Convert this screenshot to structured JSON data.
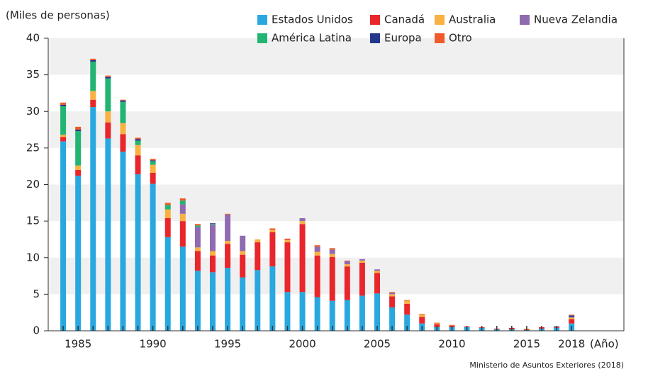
{
  "chart_data": {
    "type": "stacked_bar",
    "y_label": "(Miles de personas)",
    "x_label": "(Año)",
    "source": "Ministerio de Asuntos Exteriores (2018)",
    "x": [
      1984,
      1985,
      1986,
      1987,
      1988,
      1989,
      1990,
      1991,
      1992,
      1993,
      1994,
      1995,
      1996,
      1997,
      1998,
      1999,
      2000,
      2001,
      2002,
      2003,
      2004,
      2005,
      2006,
      2007,
      2008,
      2009,
      2010,
      2011,
      2012,
      2013,
      2014,
      2015,
      2016,
      2017,
      2018
    ],
    "xlim": [
      1983,
      2021.5
    ],
    "xticks": [
      1985,
      1990,
      1995,
      2000,
      2005,
      2010,
      2015,
      2018
    ],
    "ylim": [
      0,
      40
    ],
    "yticks": [
      0,
      5,
      10,
      15,
      20,
      25,
      30,
      35,
      40
    ],
    "grid": true,
    "series": [
      {
        "name": "Estados Unidos",
        "color": "#29a8e0",
        "values": [
          25.9,
          21.2,
          30.6,
          26.3,
          24.5,
          21.4,
          20.1,
          12.8,
          11.5,
          8.2,
          8.0,
          8.6,
          7.3,
          8.3,
          8.8,
          5.3,
          5.3,
          4.6,
          4.1,
          4.2,
          4.8,
          5.1,
          3.2,
          2.2,
          1.0,
          0.5,
          0.5,
          0.5,
          0.4,
          0.2,
          0.2,
          0.1,
          0.3,
          0.4,
          1.0
        ]
      },
      {
        "name": "Canadá",
        "color": "#e8262b",
        "values": [
          0.6,
          0.8,
          1.0,
          2.2,
          2.4,
          2.6,
          1.5,
          2.6,
          3.5,
          2.7,
          2.3,
          3.3,
          3.1,
          3.8,
          4.7,
          6.8,
          9.3,
          5.7,
          6.0,
          4.6,
          4.5,
          2.8,
          1.5,
          1.5,
          0.9,
          0.4,
          0.2,
          0.1,
          0.1,
          0.1,
          0.2,
          0.1,
          0.2,
          0.1,
          0.6
        ]
      },
      {
        "name": "Australia",
        "color": "#f9b142",
        "values": [
          0.3,
          0.6,
          1.2,
          1.5,
          1.5,
          1.4,
          1.1,
          1.2,
          1.0,
          0.5,
          0.6,
          0.4,
          0.5,
          0.4,
          0.3,
          0.3,
          0.4,
          0.5,
          0.4,
          0.3,
          0.3,
          0.3,
          0.3,
          0.4,
          0.3,
          0.1,
          0,
          0,
          0,
          0,
          0,
          0.1,
          0,
          0,
          0.2
        ]
      },
      {
        "name": "Nueva Zelandia",
        "color": "#8f6bb0",
        "values": [
          0,
          0,
          0,
          0,
          0,
          0,
          0,
          0,
          1.3,
          2.8,
          3.6,
          3.6,
          2.1,
          0,
          0,
          0,
          0.4,
          0.7,
          0.6,
          0.4,
          0.2,
          0.2,
          0.2,
          0,
          0,
          0,
          0,
          0,
          0,
          0,
          0,
          0,
          0,
          0,
          0.1
        ]
      },
      {
        "name": "América Latina",
        "color": "#22b473",
        "values": [
          3.9,
          4.7,
          4.0,
          4.5,
          2.9,
          0.6,
          0.5,
          0.6,
          0.5,
          0.2,
          0.1,
          0,
          0,
          0,
          0,
          0,
          0,
          0,
          0,
          0,
          0,
          0,
          0,
          0,
          0,
          0,
          0,
          0,
          0,
          0,
          0,
          0,
          0,
          0,
          0
        ]
      },
      {
        "name": "Europa",
        "color": "#23388c",
        "values": [
          0.2,
          0.2,
          0.2,
          0.2,
          0.2,
          0.2,
          0.1,
          0,
          0,
          0,
          0.1,
          0,
          0,
          0,
          0,
          0,
          0,
          0,
          0,
          0,
          0,
          0,
          0,
          0,
          0,
          0,
          0,
          0,
          0,
          0,
          0,
          0,
          0,
          0.1,
          0.2
        ]
      },
      {
        "name": "Otro",
        "color": "#ef5a28",
        "values": [
          0.3,
          0.4,
          0.2,
          0.2,
          0.1,
          0.2,
          0.2,
          0.3,
          0.3,
          0.2,
          0,
          0.1,
          0,
          0,
          0.2,
          0.2,
          0,
          0.2,
          0.2,
          0.1,
          0,
          0,
          0.1,
          0.1,
          0.1,
          0.1,
          0.1,
          0,
          0,
          0,
          0,
          0,
          0,
          0,
          0.1
        ]
      }
    ]
  }
}
